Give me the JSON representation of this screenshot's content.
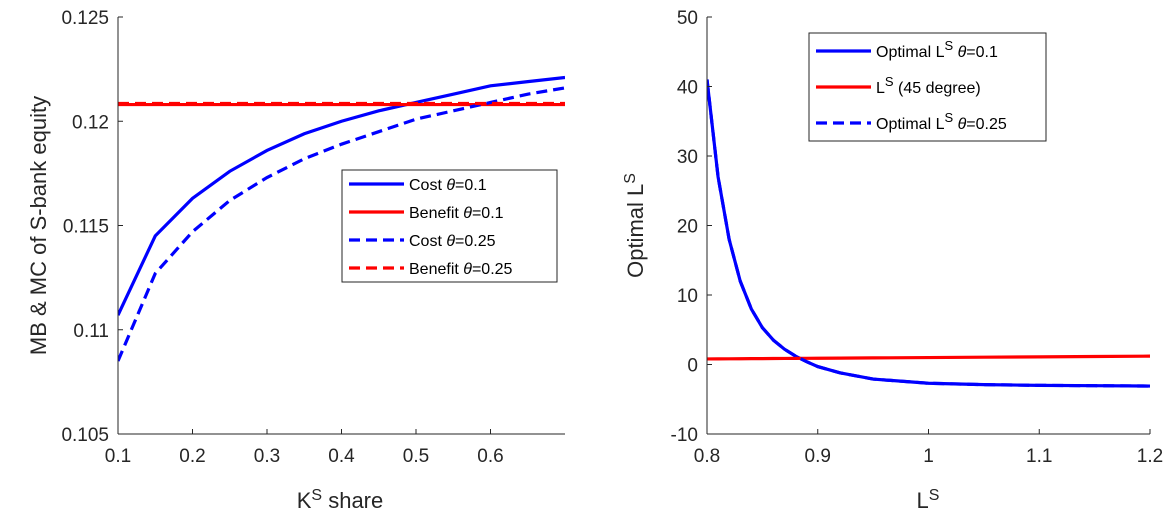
{
  "colors": {
    "blue": "#0000ff",
    "red": "#ff0000",
    "axis": "#262626"
  },
  "chart_data": [
    {
      "type": "line",
      "title": "",
      "xlabel": "K^S share",
      "xlabel_parts": {
        "base": "K",
        "sup": "S",
        "rest": " share"
      },
      "ylabel": "MB & MC of S-bank equity",
      "xlim": [
        0.1,
        0.7
      ],
      "ylim": [
        0.105,
        0.125
      ],
      "xticks": [
        0.1,
        0.2,
        0.3,
        0.4,
        0.5,
        0.6
      ],
      "xtick_labels": [
        "0.1",
        "0.2",
        "0.3",
        "0.4",
        "0.5",
        "0.6"
      ],
      "yticks": [
        0.105,
        0.11,
        0.115,
        0.12,
        0.125
      ],
      "ytick_labels": [
        "0.105",
        "0.11",
        "0.115",
        "0.12",
        "0.125"
      ],
      "grid": false,
      "legend_position": "right-middle",
      "x": [
        0.1,
        0.15,
        0.2,
        0.25,
        0.3,
        0.35,
        0.4,
        0.45,
        0.5,
        0.55,
        0.6,
        0.65,
        0.7
      ],
      "series": [
        {
          "name": "Cost θ=0.1",
          "label_parts": {
            "pre": "Cost ",
            "theta": "θ",
            "post": "=0.1"
          },
          "color": "#0000ff",
          "dash": "solid",
          "values": [
            0.1107,
            0.1145,
            0.1163,
            0.1176,
            0.1186,
            0.1194,
            0.12,
            0.1205,
            0.1209,
            0.1213,
            0.1217,
            0.1219,
            0.1221
          ]
        },
        {
          "name": "Benefit θ=0.1",
          "label_parts": {
            "pre": "Benefit ",
            "theta": "θ",
            "post": "=0.1"
          },
          "color": "#ff0000",
          "dash": "solid",
          "values": [
            0.1208,
            0.1208,
            0.1208,
            0.1208,
            0.1208,
            0.1208,
            0.1208,
            0.1208,
            0.1208,
            0.1208,
            0.1208,
            0.1208,
            0.1208
          ]
        },
        {
          "name": "Cost θ=0.25",
          "label_parts": {
            "pre": "Cost ",
            "theta": "θ",
            "post": "=0.25"
          },
          "color": "#0000ff",
          "dash": "dashed",
          "values": [
            0.1085,
            0.1127,
            0.1147,
            0.1162,
            0.1173,
            0.1182,
            0.1189,
            0.1195,
            0.1201,
            0.1205,
            0.1209,
            0.1213,
            0.1216
          ]
        },
        {
          "name": "Benefit θ=0.25",
          "label_parts": {
            "pre": "Benefit ",
            "theta": "θ",
            "post": "=0.25"
          },
          "color": "#ff0000",
          "dash": "dashed",
          "values": [
            0.12085,
            0.12085,
            0.12085,
            0.12085,
            0.12085,
            0.12085,
            0.12085,
            0.12085,
            0.12085,
            0.12085,
            0.12085,
            0.12085,
            0.12085
          ]
        }
      ]
    },
    {
      "type": "line",
      "title": "",
      "xlabel": "L^S",
      "xlabel_parts": {
        "base": "L",
        "sup": "S",
        "rest": ""
      },
      "ylabel": "Optimal L^S",
      "ylabel_parts": {
        "base": "Optimal L",
        "sup": "S"
      },
      "xlim": [
        0.8,
        1.2
      ],
      "ylim": [
        -10,
        50
      ],
      "xticks": [
        0.8,
        0.9,
        1.0,
        1.1,
        1.2
      ],
      "xtick_labels": [
        "0.8",
        "0.9",
        "1",
        "1.1",
        "1.2"
      ],
      "yticks": [
        -10,
        0,
        10,
        20,
        30,
        40,
        50
      ],
      "ytick_labels": [
        "-10",
        "0",
        "10",
        "20",
        "30",
        "40",
        "50"
      ],
      "grid": false,
      "legend_position": "top-right",
      "x": [
        0.8,
        0.81,
        0.82,
        0.83,
        0.84,
        0.85,
        0.86,
        0.87,
        0.88,
        0.89,
        0.9,
        0.92,
        0.95,
        1.0,
        1.05,
        1.1,
        1.15,
        1.2
      ],
      "series": [
        {
          "name": "Optimal L^S θ=0.1",
          "label_parts": {
            "pre": "Optimal L",
            "sup": "S",
            "theta": "θ",
            "post": "=0.1"
          },
          "color": "#0000ff",
          "dash": "solid",
          "values": [
            41,
            27,
            18,
            12,
            8,
            5.3,
            3.5,
            2.2,
            1.2,
            0.4,
            -0.3,
            -1.2,
            -2.1,
            -2.7,
            -2.9,
            -3.0,
            -3.05,
            -3.1
          ]
        },
        {
          "name": "L^S (45 degree)",
          "label_parts": {
            "pre": "L",
            "sup": "S",
            "theta": "",
            "post": " (45 degree)"
          },
          "color": "#ff0000",
          "dash": "solid",
          "values": [
            0.8,
            0.81,
            0.82,
            0.83,
            0.84,
            0.85,
            0.86,
            0.87,
            0.88,
            0.89,
            0.9,
            0.92,
            0.95,
            1.0,
            1.05,
            1.1,
            1.15,
            1.2
          ]
        },
        {
          "name": "Optimal L^S θ=0.25",
          "label_parts": {
            "pre": "Optimal L",
            "sup": "S",
            "theta": "θ",
            "post": "=0.25"
          },
          "color": "#0000ff",
          "dash": "dashed",
          "values": [
            41,
            27,
            18,
            12,
            8,
            5.3,
            3.5,
            2.2,
            1.2,
            0.4,
            -0.3,
            -1.2,
            -2.1,
            -2.7,
            -2.9,
            -3.0,
            -3.05,
            -3.1
          ]
        }
      ]
    }
  ]
}
